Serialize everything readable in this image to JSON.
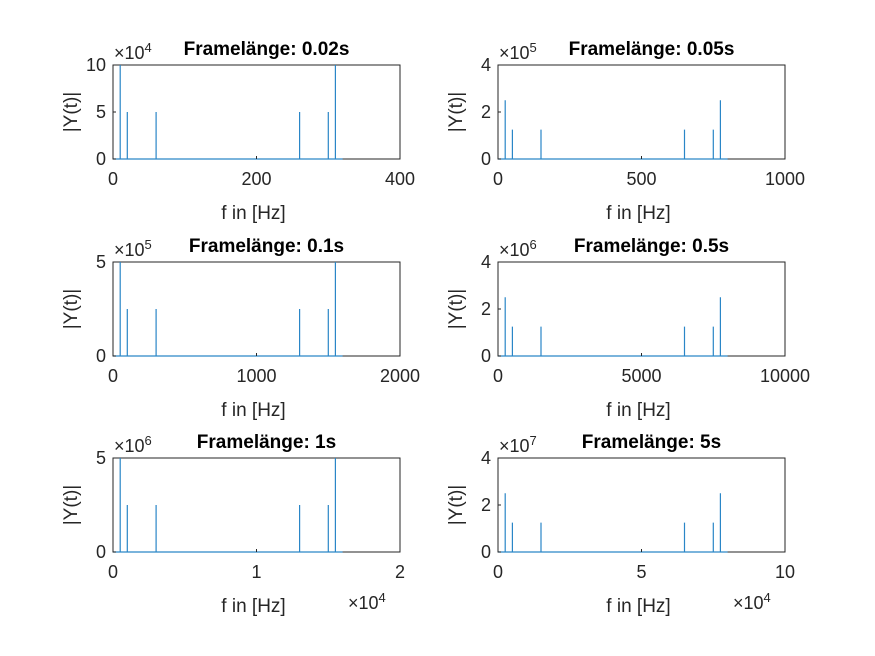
{
  "colors": {
    "line": "#2a86c7",
    "axes": "#262626",
    "background": "#ffffff"
  },
  "chart_data": [
    {
      "type": "line",
      "title": "Framelänge: 0.02s",
      "xlabel": "f in [Hz]",
      "ylabel": "|Y(t)|",
      "xlim": [
        0,
        400
      ],
      "ylim": [
        0,
        10
      ],
      "xticks": [
        "0",
        "200",
        "400"
      ],
      "yticks": [
        "0",
        "5",
        "10"
      ],
      "x_exponent": "",
      "y_exponent": "4",
      "series": [
        {
          "x": [
            0,
            10,
            20,
            60,
            260,
            300,
            310,
            320
          ],
          "y": [
            0,
            10,
            5,
            5,
            5,
            5,
            10,
            0
          ]
        }
      ]
    },
    {
      "type": "line",
      "title": "Framelänge: 0.05s",
      "xlabel": "f in [Hz]",
      "ylabel": "|Y(t)|",
      "xlim": [
        0,
        1000
      ],
      "ylim": [
        0,
        4
      ],
      "xticks": [
        "0",
        "500",
        "1000"
      ],
      "yticks": [
        "0",
        "2",
        "4"
      ],
      "x_exponent": "",
      "y_exponent": "5",
      "series": [
        {
          "x": [
            0,
            25,
            50,
            150,
            650,
            750,
            775,
            800
          ],
          "y": [
            0,
            2.5,
            1.25,
            1.25,
            1.25,
            1.25,
            2.5,
            0
          ]
        }
      ]
    },
    {
      "type": "line",
      "title": "Framelänge: 0.1s",
      "xlabel": "f in [Hz]",
      "ylabel": "|Y(t)|",
      "xlim": [
        0,
        2000
      ],
      "ylim": [
        0,
        5
      ],
      "xticks": [
        "0",
        "1000",
        "2000"
      ],
      "yticks": [
        "0",
        "5"
      ],
      "x_exponent": "",
      "y_exponent": "5",
      "series": [
        {
          "x": [
            0,
            50,
            100,
            300,
            1300,
            1500,
            1550,
            1600
          ],
          "y": [
            0,
            5,
            2.5,
            2.5,
            2.5,
            2.5,
            5,
            0
          ]
        }
      ]
    },
    {
      "type": "line",
      "title": "Framelänge: 0.5s",
      "xlabel": "f in [Hz]",
      "ylabel": "|Y(t)|",
      "xlim": [
        0,
        10000
      ],
      "ylim": [
        0,
        4
      ],
      "xticks": [
        "0",
        "5000",
        "10000"
      ],
      "yticks": [
        "0",
        "2",
        "4"
      ],
      "x_exponent": "",
      "y_exponent": "6",
      "series": [
        {
          "x": [
            0,
            250,
            500,
            1500,
            6500,
            7500,
            7750,
            8000
          ],
          "y": [
            0,
            2.5,
            1.25,
            1.25,
            1.25,
            1.25,
            2.5,
            0
          ]
        }
      ]
    },
    {
      "type": "line",
      "title": "Framelänge: 1s",
      "xlabel": "f in [Hz]",
      "ylabel": "|Y(t)|",
      "xlim": [
        0,
        2
      ],
      "ylim": [
        0,
        5
      ],
      "xticks": [
        "0",
        "1",
        "2"
      ],
      "yticks": [
        "0",
        "5"
      ],
      "x_exponent": "4",
      "y_exponent": "6",
      "series": [
        {
          "x": [
            0,
            0.05,
            0.1,
            0.3,
            1.3,
            1.5,
            1.55,
            1.6
          ],
          "y": [
            0,
            5,
            2.5,
            2.5,
            2.5,
            2.5,
            5,
            0
          ]
        }
      ]
    },
    {
      "type": "line",
      "title": "Framelänge: 5s",
      "xlabel": "f in [Hz]",
      "ylabel": "|Y(t)|",
      "xlim": [
        0,
        10
      ],
      "ylim": [
        0,
        4
      ],
      "xticks": [
        "0",
        "5",
        "10"
      ],
      "yticks": [
        "0",
        "2",
        "4"
      ],
      "x_exponent": "4",
      "y_exponent": "7",
      "series": [
        {
          "x": [
            0,
            0.25,
            0.5,
            1.5,
            6.5,
            7.5,
            7.75,
            8
          ],
          "y": [
            0,
            2.5,
            1.25,
            1.25,
            1.25,
            1.25,
            2.5,
            0
          ]
        }
      ]
    }
  ]
}
